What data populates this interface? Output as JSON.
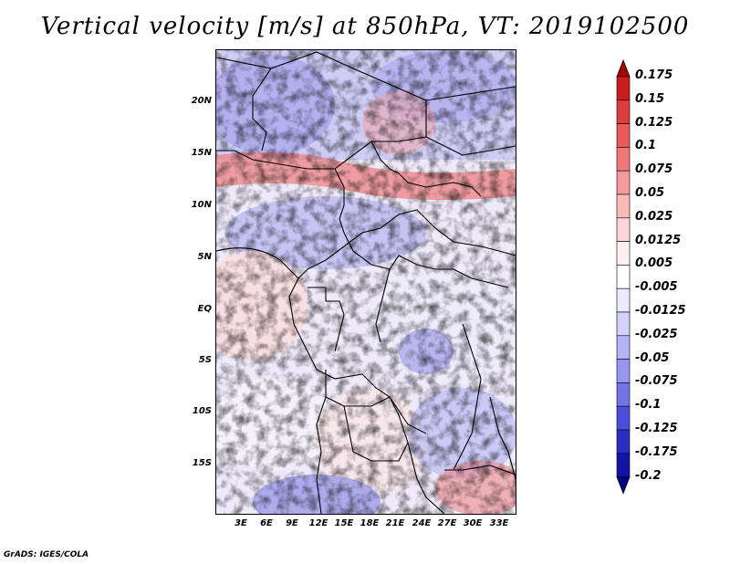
{
  "title": "Vertical velocity [m/s] at 850hPa, VT: 2019102500",
  "credit": "GrADS: IGES/COLA",
  "lat_labels": [
    "20N",
    "15N",
    "10N",
    "5N",
    "EQ",
    "5S",
    "10S",
    "15S"
  ],
  "lon_labels": [
    "3E",
    "6E",
    "9E",
    "12E",
    "15E",
    "18E",
    "21E",
    "24E",
    "27E",
    "30E",
    "33E"
  ],
  "colorbar": {
    "labels": [
      "0.175",
      "0.15",
      "0.125",
      "0.1",
      "0.075",
      "0.05",
      "0.025",
      "0.0125",
      "0.005",
      "-0.005",
      "-0.0125",
      "-0.025",
      "-0.05",
      "-0.075",
      "-0.1",
      "-0.125",
      "-0.175",
      "-0.2"
    ],
    "colors": [
      "#a80000",
      "#c81e1e",
      "#dc3c3c",
      "#ea5a5a",
      "#f07878",
      "#f59a9a",
      "#f9baba",
      "#fcd6d6",
      "#fff0f0",
      "#ffffff",
      "#ebebff",
      "#d2d2fa",
      "#b4b4f5",
      "#9696f0",
      "#7373e6",
      "#4e4edc",
      "#2d2dc4",
      "#1414a4",
      "#000080"
    ]
  }
}
